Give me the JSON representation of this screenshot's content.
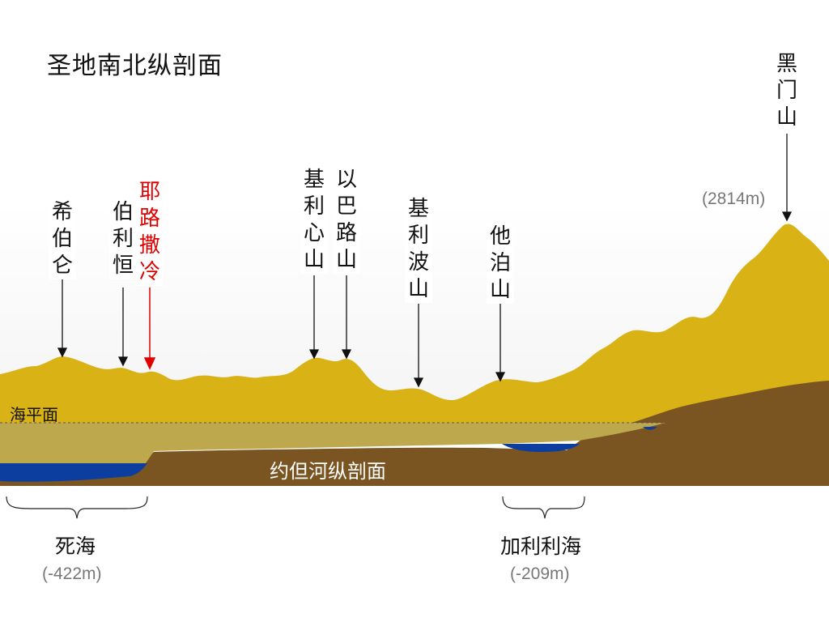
{
  "title": "圣地南北纵剖面",
  "labels": {
    "hebron": "希伯仑",
    "bethlehem": "伯利恒",
    "jerusalem": "耶路撒冷",
    "gerizim": "基利心山",
    "ebal": "以巴路山",
    "gilboa": "基利波山",
    "tabor": "他泊山",
    "hermon": "黑门山"
  },
  "hermon_altitude": "(2814m)",
  "sea_level": "海平面",
  "jordan_profile": "约但河纵剖面",
  "dead_sea": {
    "name": "死海",
    "altitude": "(-422m)"
  },
  "galilee": {
    "name": "加利利海",
    "altitude": "(-209m)"
  },
  "colors": {
    "mountain": "#d9b216",
    "valley": "#7a5521",
    "water": "#0c3ea0",
    "band": "#bea84e",
    "highlight": "#e00000"
  }
}
